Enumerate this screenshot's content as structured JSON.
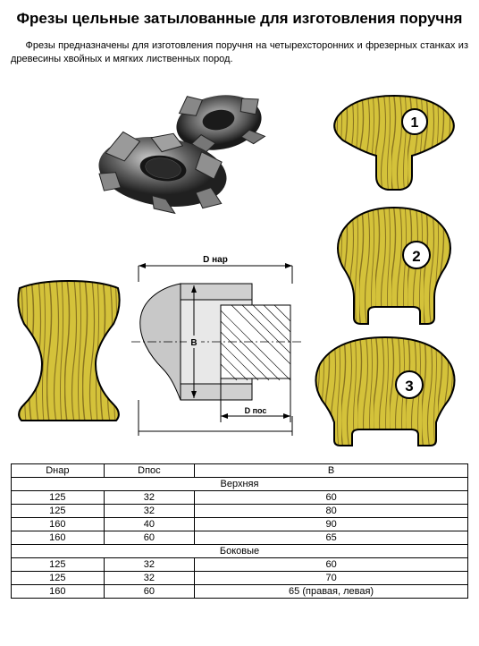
{
  "title": "Фрезы цельные затылованные для изготовления поручня",
  "description": "Фрезы предназначены для изготовления поручня на четырехсторонних и фрезерных станках из древесины хвойных и мягких лиственных пород.",
  "diagram_labels": {
    "d_nar": "D нар",
    "d_pos": "D пос",
    "b": "B"
  },
  "profiles": [
    {
      "num": "1"
    },
    {
      "num": "2"
    },
    {
      "num": "3"
    }
  ],
  "wood_fill": "#d4c23a",
  "wood_grain": "#8a7420",
  "wood_stroke": "#000000",
  "metal_dark": "#3a3a3a",
  "metal_mid": "#6a6a6a",
  "metal_light": "#b8b8b8",
  "table": {
    "columns": [
      "Dнар",
      "Dпос",
      "B"
    ],
    "sections": [
      {
        "label": "Верхняя",
        "rows": [
          [
            "125",
            "32",
            "60"
          ],
          [
            "125",
            "32",
            "80"
          ],
          [
            "160",
            "40",
            "90"
          ],
          [
            "160",
            "60",
            "65"
          ]
        ]
      },
      {
        "label": "Боковые",
        "rows": [
          [
            "125",
            "32",
            "60"
          ],
          [
            "125",
            "32",
            "70"
          ],
          [
            "160",
            "60",
            "65 (правая, левая)"
          ]
        ]
      }
    ]
  }
}
